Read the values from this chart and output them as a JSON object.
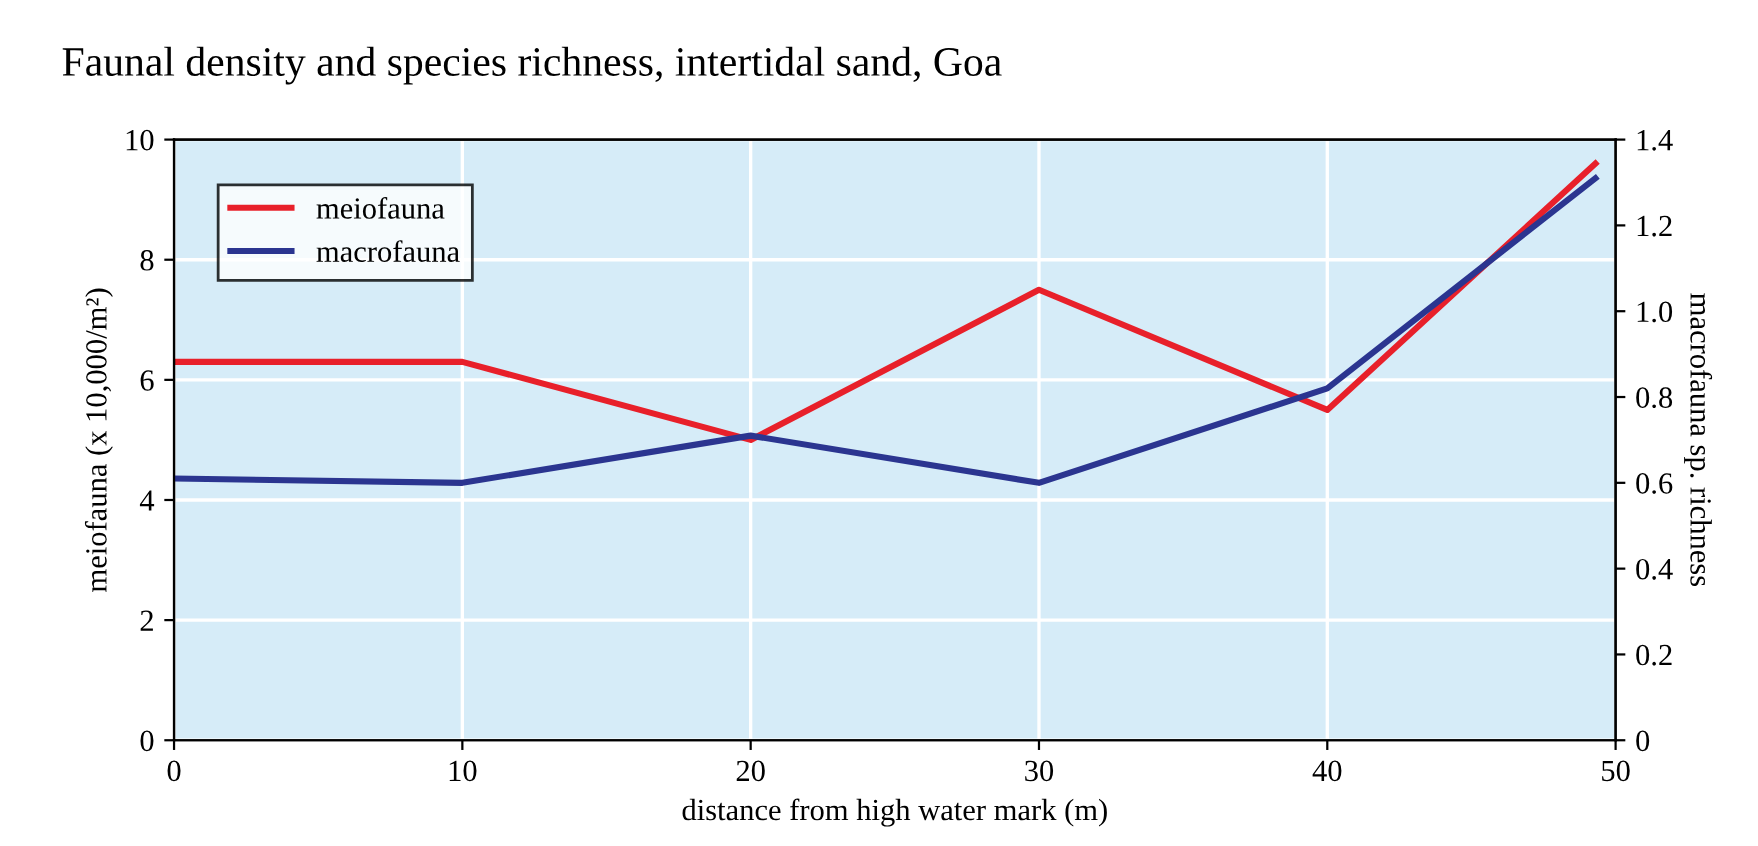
{
  "chart_data": {
    "type": "line",
    "title": "Faunal density and species richness, intertidal sand, Goa",
    "xlabel": "distance from high water mark (m)",
    "ylabel": "meiofauna (x 10,000/m²)",
    "y2label": "macrofauna sp. richness",
    "series": [
      {
        "name": "meiofauna",
        "color": "#e8202a",
        "x": [
          0,
          10,
          20,
          30,
          40,
          49.3
        ],
        "values": [
          6.3,
          6.3,
          5.0,
          7.5,
          5.5,
          9.6
        ]
      },
      {
        "name": "macrofauna",
        "color": "#2b3590",
        "axis": "y2",
        "x": [
          0,
          10,
          20,
          30,
          40,
          49.3
        ],
        "values": [
          0.61,
          0.6,
          0.71,
          0.6,
          0.82,
          1.31
        ]
      }
    ],
    "xlim": [
      0,
      50
    ],
    "xticks": [
      0,
      10,
      20,
      30,
      40,
      50
    ],
    "ylim": [
      0,
      10
    ],
    "yticks": [
      0,
      2,
      4,
      6,
      8,
      10
    ],
    "y2lim": [
      0,
      1.4
    ],
    "y2ticks": [
      0,
      0.2,
      0.4,
      0.6,
      0.8,
      {
        "value": 1.0,
        "label": "1.0"
      },
      1.2,
      1.4
    ],
    "grid": true,
    "legend": "top left",
    "marker": "none",
    "line_style": "solid"
  }
}
